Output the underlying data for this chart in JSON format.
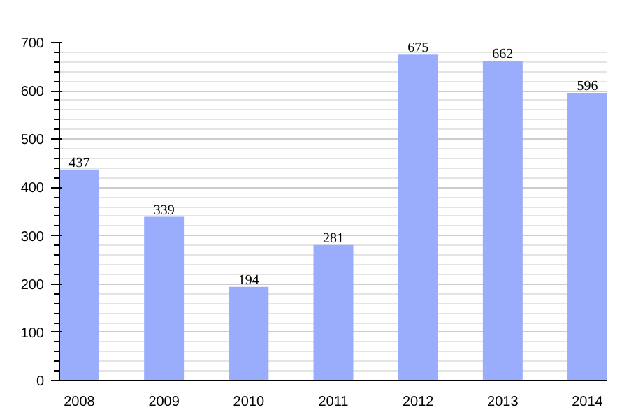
{
  "chart_data": {
    "type": "bar",
    "categories": [
      "2008",
      "2009",
      "2010",
      "2011",
      "2012",
      "2013",
      "2014"
    ],
    "values": [
      437,
      339,
      194,
      281,
      675,
      662,
      596
    ],
    "color": "#9aacfc",
    "data_labels": true,
    "ylim": [
      0,
      700
    ],
    "yticks": [
      0,
      100,
      200,
      300,
      400,
      500,
      600,
      700
    ],
    "grid": "y"
  }
}
